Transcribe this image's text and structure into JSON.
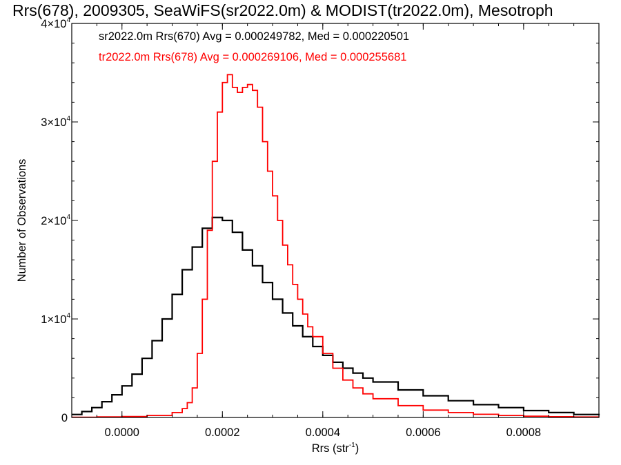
{
  "chart_data": {
    "type": "line",
    "title": "Rrs(678), 2009305, SeaWiFS(sr2022.0m) & MODIST(tr2022.0m), Mesotroph",
    "xlabel": "Rrs (str",
    "xlabel_sup": "-1",
    "xlabel_close": ")",
    "ylabel": "Number of Observations",
    "xlim": [
      -0.0001,
      0.00095
    ],
    "ylim": [
      0,
      40000
    ],
    "xticks": [
      0.0,
      0.0002,
      0.0004,
      0.0006,
      0.0008
    ],
    "xtick_labels": [
      "0.0000",
      "0.0002",
      "0.0004",
      "0.0006",
      "0.0008"
    ],
    "yticks": [
      0,
      10000,
      20000,
      30000,
      40000
    ],
    "ytick_labels": [
      {
        "base": "0",
        "exp": ""
      },
      {
        "base": "1×10",
        "exp": "4"
      },
      {
        "base": "2×10",
        "exp": "4"
      },
      {
        "base": "3×10",
        "exp": "4"
      },
      {
        "base": "4×10",
        "exp": "4"
      }
    ],
    "series": [
      {
        "name": "sr2022.0m Rrs(670) Avg = 0.000249782, Med = 0.000220501",
        "color": "#000000",
        "x": [
          -0.0001,
          -8e-05,
          -6e-05,
          -4e-05,
          -2e-05,
          0.0,
          2e-05,
          4e-05,
          6e-05,
          8e-05,
          0.0001,
          0.00012,
          0.00014,
          0.00016,
          0.00018,
          0.0002,
          0.00022,
          0.00024,
          0.00026,
          0.00028,
          0.0003,
          0.00032,
          0.00034,
          0.00036,
          0.00038,
          0.0004,
          0.00042,
          0.00044,
          0.00046,
          0.00048,
          0.0005,
          0.00055,
          0.0006,
          0.00065,
          0.0007,
          0.00075,
          0.0008,
          0.00085,
          0.0009,
          0.00095
        ],
        "y": [
          300,
          600,
          1000,
          1600,
          2300,
          3200,
          4400,
          6000,
          7800,
          10000,
          12500,
          15000,
          17300,
          19200,
          20300,
          20000,
          18800,
          17000,
          15400,
          13700,
          12000,
          10600,
          9300,
          8200,
          7200,
          6300,
          5600,
          5000,
          4500,
          4000,
          3600,
          2800,
          2200,
          1700,
          1300,
          1000,
          700,
          500,
          300,
          200
        ]
      },
      {
        "name": "tr2022.0m Rrs(678) Avg = 0.000269106, Med = 0.000255681",
        "color": "#ff0000",
        "x": [
          -0.0001,
          -5e-05,
          0.0,
          5e-05,
          0.0001,
          0.00012,
          0.00013,
          0.00014,
          0.00015,
          0.00016,
          0.00017,
          0.00018,
          0.00019,
          0.0002,
          0.00021,
          0.00022,
          0.00023,
          0.00024,
          0.00025,
          0.00026,
          0.00027,
          0.00028,
          0.00029,
          0.0003,
          0.00031,
          0.00032,
          0.00033,
          0.00034,
          0.00035,
          0.00036,
          0.00037,
          0.00038,
          0.0004,
          0.00042,
          0.00044,
          0.00046,
          0.00048,
          0.0005,
          0.00055,
          0.0006,
          0.00065,
          0.0007,
          0.00075,
          0.0008,
          0.00085,
          0.0009,
          0.00095
        ],
        "y": [
          30,
          60,
          100,
          200,
          500,
          900,
          1500,
          3000,
          6500,
          12000,
          19000,
          26000,
          31000,
          34000,
          34800,
          33500,
          33000,
          33500,
          33800,
          33200,
          31500,
          28000,
          25000,
          22500,
          20000,
          17500,
          15500,
          13500,
          12000,
          10500,
          9200,
          8200,
          6500,
          5000,
          3800,
          3000,
          2400,
          1900,
          1200,
          750,
          500,
          320,
          200,
          130,
          80,
          50,
          30
        ]
      }
    ],
    "grid": false,
    "legend_position": "top-left"
  }
}
